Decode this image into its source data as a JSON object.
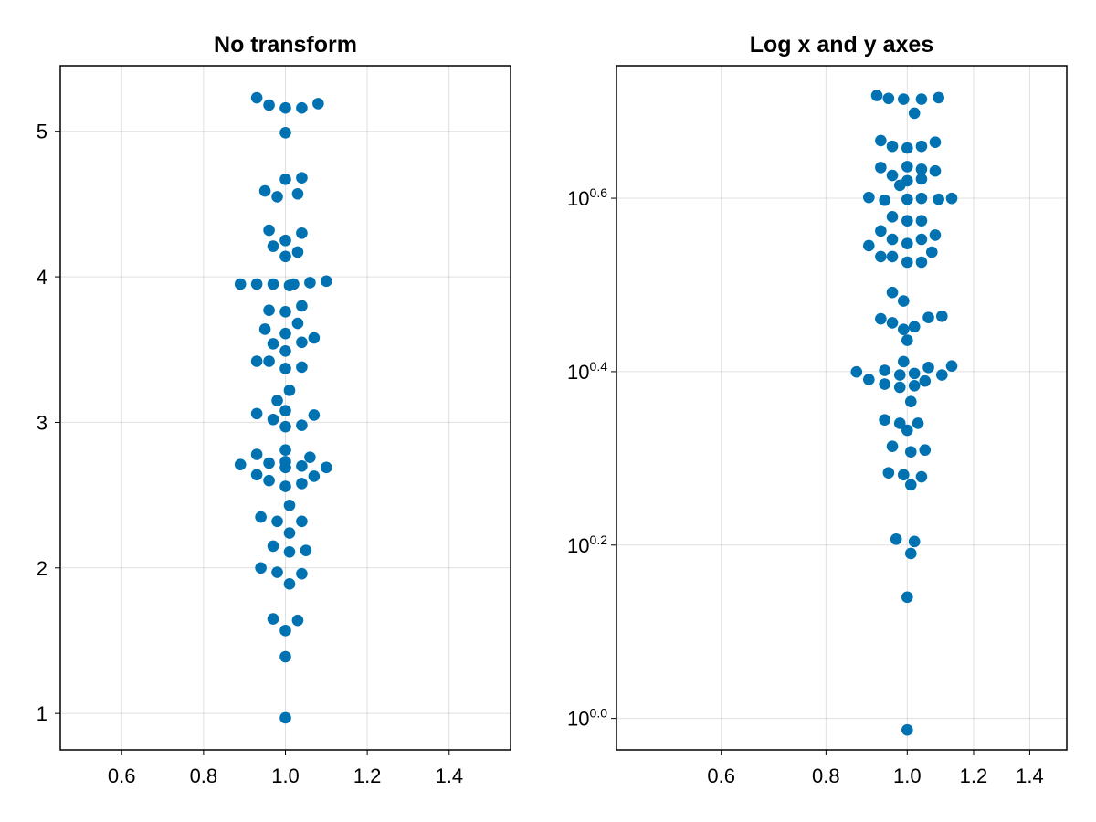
{
  "colors": {
    "marker": "#0072b2",
    "frame": "#000000",
    "grid": "#e5e5e5",
    "background": "#ffffff"
  },
  "chart_data": [
    {
      "type": "scatter",
      "title": "No transform",
      "xlabel": "",
      "ylabel": "",
      "xscale": "linear",
      "yscale": "linear",
      "xlim": [
        0.45,
        1.55
      ],
      "ylim": [
        0.75,
        5.45
      ],
      "grid": true,
      "x_ticks": [
        {
          "value": 0.6,
          "label": "0.6"
        },
        {
          "value": 0.8,
          "label": "0.8"
        },
        {
          "value": 1.0,
          "label": "1.0"
        },
        {
          "value": 1.2,
          "label": "1.2"
        },
        {
          "value": 1.4,
          "label": "1.4"
        }
      ],
      "y_ticks": [
        {
          "value": 1,
          "label": "1"
        },
        {
          "value": 2,
          "label": "2"
        },
        {
          "value": 3,
          "label": "3"
        },
        {
          "value": 4,
          "label": "4"
        },
        {
          "value": 5,
          "label": "5"
        }
      ],
      "series": [
        {
          "points": [
            [
              0.93,
              5.23
            ],
            [
              0.96,
              5.18
            ],
            [
              1.0,
              5.16
            ],
            [
              1.04,
              5.16
            ],
            [
              1.08,
              5.19
            ],
            [
              1.0,
              4.99
            ],
            [
              1.0,
              4.67
            ],
            [
              1.04,
              4.68
            ],
            [
              0.95,
              4.59
            ],
            [
              0.98,
              4.55
            ],
            [
              1.03,
              4.57
            ],
            [
              0.96,
              4.32
            ],
            [
              1.04,
              4.3
            ],
            [
              1.0,
              4.25
            ],
            [
              0.97,
              4.21
            ],
            [
              1.03,
              4.17
            ],
            [
              1.0,
              4.14
            ],
            [
              0.89,
              3.95
            ],
            [
              0.93,
              3.95
            ],
            [
              0.97,
              3.95
            ],
            [
              1.01,
              3.94
            ],
            [
              1.02,
              3.95
            ],
            [
              1.06,
              3.96
            ],
            [
              1.1,
              3.97
            ],
            [
              1.04,
              3.8
            ],
            [
              0.96,
              3.77
            ],
            [
              1.0,
              3.76
            ],
            [
              1.03,
              3.68
            ],
            [
              0.95,
              3.64
            ],
            [
              1.0,
              3.61
            ],
            [
              1.07,
              3.58
            ],
            [
              0.97,
              3.54
            ],
            [
              1.04,
              3.55
            ],
            [
              1.0,
              3.49
            ],
            [
              0.93,
              3.42
            ],
            [
              0.96,
              3.42
            ],
            [
              1.0,
              3.37
            ],
            [
              1.04,
              3.38
            ],
            [
              1.01,
              3.22
            ],
            [
              0.98,
              3.15
            ],
            [
              1.0,
              3.08
            ],
            [
              0.93,
              3.06
            ],
            [
              1.07,
              3.05
            ],
            [
              0.97,
              3.02
            ],
            [
              1.0,
              2.97
            ],
            [
              1.04,
              2.98
            ],
            [
              1.0,
              2.81
            ],
            [
              0.93,
              2.78
            ],
            [
              0.96,
              2.72
            ],
            [
              1.0,
              2.73
            ],
            [
              1.06,
              2.76
            ],
            [
              0.89,
              2.71
            ],
            [
              1.04,
              2.7
            ],
            [
              1.0,
              2.69
            ],
            [
              1.1,
              2.69
            ],
            [
              0.93,
              2.64
            ],
            [
              0.96,
              2.6
            ],
            [
              1.07,
              2.63
            ],
            [
              1.04,
              2.58
            ],
            [
              1.0,
              2.56
            ],
            [
              1.01,
              2.43
            ],
            [
              0.94,
              2.35
            ],
            [
              0.98,
              2.32
            ],
            [
              1.04,
              2.32
            ],
            [
              1.01,
              2.24
            ],
            [
              0.97,
              2.15
            ],
            [
              1.01,
              2.11
            ],
            [
              1.05,
              2.12
            ],
            [
              0.94,
              2.0
            ],
            [
              0.98,
              1.97
            ],
            [
              1.04,
              1.96
            ],
            [
              1.01,
              1.89
            ],
            [
              0.97,
              1.65
            ],
            [
              1.03,
              1.64
            ],
            [
              1.0,
              1.57
            ],
            [
              1.0,
              1.39
            ],
            [
              1.0,
              0.97
            ]
          ]
        }
      ]
    },
    {
      "type": "scatter",
      "title": "Log x and y axes",
      "xlabel": "",
      "ylabel": "",
      "xscale": "log10",
      "yscale": "log10",
      "xlim": [
        0.45,
        1.55
      ],
      "ylim": [
        0.92,
        5.66
      ],
      "grid": true,
      "x_ticks": [
        {
          "value": 0.6,
          "label": "0.6"
        },
        {
          "value": 0.8,
          "label": "0.8"
        },
        {
          "value": 1.0,
          "label": "1.0"
        },
        {
          "value": 1.2,
          "label": "1.2"
        },
        {
          "value": 1.4,
          "label": "1.4"
        }
      ],
      "y_ticks": [
        {
          "value": 1.0,
          "base": "10",
          "exp": "0.0"
        },
        {
          "value": 1.5849,
          "base": "10",
          "exp": "0.2"
        },
        {
          "value": 2.5119,
          "base": "10",
          "exp": "0.4"
        },
        {
          "value": 3.9811,
          "base": "10",
          "exp": "0.6"
        }
      ],
      "series": [
        {
          "points": [
            [
              0.92,
              5.23
            ],
            [
              0.95,
              5.19
            ],
            [
              0.99,
              5.18
            ],
            [
              1.04,
              5.18
            ],
            [
              1.09,
              5.2
            ],
            [
              1.02,
              4.99
            ],
            [
              0.93,
              4.64
            ],
            [
              0.96,
              4.57
            ],
            [
              1.0,
              4.55
            ],
            [
              1.04,
              4.57
            ],
            [
              1.08,
              4.62
            ],
            [
              0.93,
              4.32
            ],
            [
              0.96,
              4.23
            ],
            [
              1.0,
              4.33
            ],
            [
              1.04,
              4.3
            ],
            [
              1.08,
              4.28
            ],
            [
              1.0,
              4.17
            ],
            [
              1.04,
              4.19
            ],
            [
              0.98,
              4.12
            ],
            [
              0.9,
              3.99
            ],
            [
              0.94,
              3.96
            ],
            [
              1.0,
              3.97
            ],
            [
              1.04,
              3.98
            ],
            [
              1.09,
              3.97
            ],
            [
              1.13,
              3.98
            ],
            [
              0.96,
              3.79
            ],
            [
              1.0,
              3.75
            ],
            [
              1.04,
              3.75
            ],
            [
              0.93,
              3.65
            ],
            [
              1.08,
              3.61
            ],
            [
              0.96,
              3.57
            ],
            [
              1.04,
              3.57
            ],
            [
              0.9,
              3.51
            ],
            [
              1.0,
              3.53
            ],
            [
              1.07,
              3.45
            ],
            [
              0.93,
              3.41
            ],
            [
              0.96,
              3.41
            ],
            [
              1.0,
              3.36
            ],
            [
              1.04,
              3.36
            ],
            [
              0.96,
              3.1
            ],
            [
              0.99,
              3.03
            ],
            [
              0.93,
              2.89
            ],
            [
              0.96,
              2.86
            ],
            [
              1.1,
              2.91
            ],
            [
              1.06,
              2.9
            ],
            [
              0.99,
              2.81
            ],
            [
              1.02,
              2.83
            ],
            [
              1.0,
              2.73
            ],
            [
              0.99,
              2.58
            ],
            [
              1.06,
              2.54
            ],
            [
              1.13,
              2.55
            ],
            [
              0.87,
              2.51
            ],
            [
              0.94,
              2.52
            ],
            [
              1.02,
              2.5
            ],
            [
              1.1,
              2.49
            ],
            [
              0.9,
              2.46
            ],
            [
              0.98,
              2.49
            ],
            [
              1.05,
              2.45
            ],
            [
              0.94,
              2.43
            ],
            [
              0.98,
              2.41
            ],
            [
              1.02,
              2.42
            ],
            [
              1.01,
              2.32
            ],
            [
              0.94,
              2.21
            ],
            [
              0.98,
              2.19
            ],
            [
              1.03,
              2.19
            ],
            [
              1.0,
              2.15
            ],
            [
              0.96,
              2.06
            ],
            [
              1.01,
              2.03
            ],
            [
              1.05,
              2.04
            ],
            [
              0.95,
              1.92
            ],
            [
              0.99,
              1.91
            ],
            [
              1.04,
              1.9
            ],
            [
              1.01,
              1.86
            ],
            [
              0.97,
              1.61
            ],
            [
              1.02,
              1.6
            ],
            [
              1.01,
              1.55
            ],
            [
              1.0,
              1.38
            ],
            [
              1.0,
              0.97
            ]
          ]
        }
      ]
    }
  ]
}
